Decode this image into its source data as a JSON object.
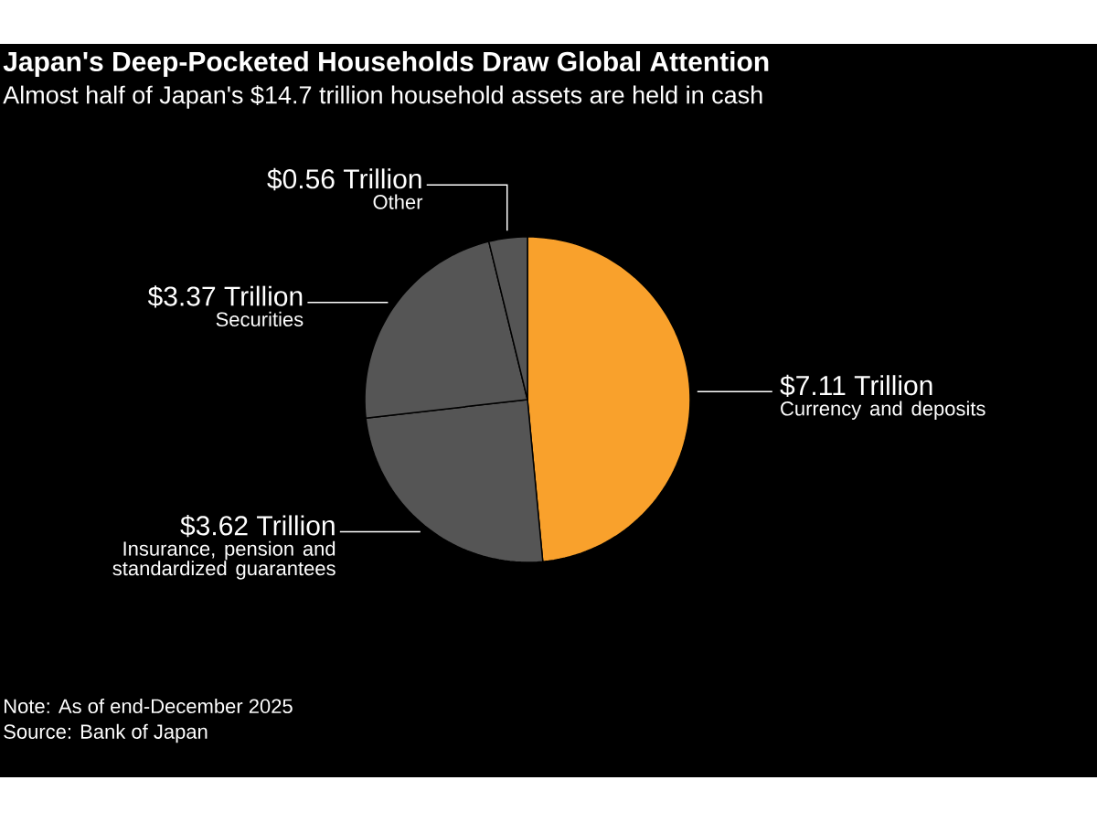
{
  "chart_data": {
    "type": "pie",
    "title": "Japan's Deep-Pocketed Households Draw Global Attention",
    "subtitle": "Almost half of Japan's $14.7 trillion household assets are held in cash",
    "categories": [
      "Currency and deposits",
      "Insurance, pension and standardized guarantees",
      "Securities",
      "Other"
    ],
    "values": [
      7.11,
      3.62,
      3.37,
      0.56
    ],
    "value_labels": [
      "$7.11 Trillion",
      "$3.62 Trillion",
      "$3.37 Trillion",
      "$0.56 Trillion"
    ],
    "colors": [
      "#f9a12c",
      "#555555",
      "#555555",
      "#555555"
    ],
    "annotations": [
      "Note: As of end-December 2025",
      "Source: Bank of Japan"
    ]
  }
}
